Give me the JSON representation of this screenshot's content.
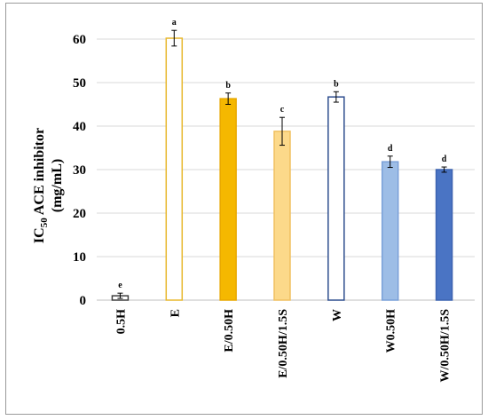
{
  "chart_data": {
    "type": "bar",
    "title": "",
    "xlabel": "",
    "ylabel_main": "IC",
    "ylabel_sub": "50",
    "ylabel_rest": " ACE inhibitor",
    "ylabel_line2": "(mg/mL)",
    "ylim": [
      0,
      70
    ],
    "yticks": [
      0,
      10,
      20,
      30,
      40,
      50,
      60
    ],
    "grid": true,
    "categories": [
      "0.5H",
      "E",
      "E/0.50H",
      "E/0.50H/1.5S",
      "W",
      "W0.50H",
      "W/0.50H/1.5S"
    ],
    "values": [
      1.0,
      60.2,
      46.3,
      38.8,
      46.7,
      31.8,
      30.0
    ],
    "errors": [
      0.6,
      1.8,
      1.3,
      3.2,
      1.2,
      1.3,
      0.6
    ],
    "significance": [
      "e",
      "a",
      "b",
      "c",
      "b",
      "d",
      "d"
    ],
    "bar_fill": [
      "#ffffff",
      "#ffffff",
      "#f5b800",
      "#fcd98a",
      "#ffffff",
      "#9dbde6",
      "#4a74c4"
    ],
    "bar_stroke": [
      "#404040",
      "#e8b82e",
      "#e8a800",
      "#f0c060",
      "#2f4f8f",
      "#7aa0d8",
      "#3c63b0"
    ],
    "gridline_color": "#d9d9d9",
    "axis_color": "#bfbfbf"
  }
}
